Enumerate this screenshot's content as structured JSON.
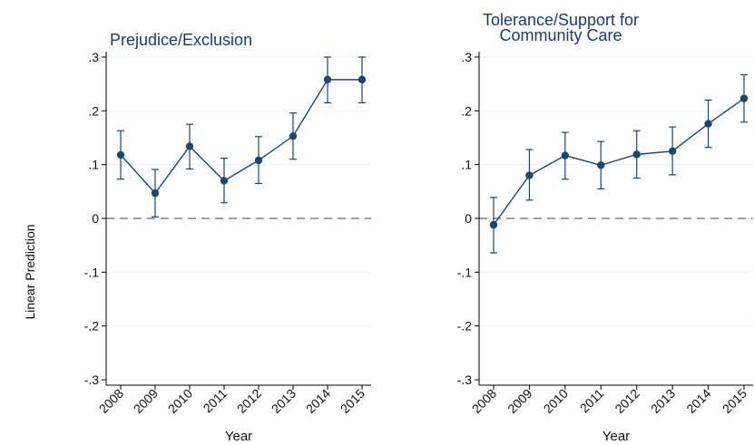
{
  "figure": {
    "shared_ylabel": "Linear Prediction"
  },
  "chart_data": [
    {
      "type": "line",
      "title": "Prejudice/Exclusion",
      "xlabel": "Year",
      "ylabel": "Linear Prediction",
      "x": [
        "2008",
        "2009",
        "2010",
        "2011",
        "2012",
        "2013",
        "2014",
        "2015"
      ],
      "series": [
        {
          "values": [
            0.118,
            0.047,
            0.134,
            0.07,
            0.108,
            0.153,
            0.258,
            0.258
          ],
          "ci_lower": [
            0.073,
            0.003,
            0.092,
            0.029,
            0.065,
            0.11,
            0.215,
            0.215
          ],
          "ci_upper": [
            0.163,
            0.091,
            0.175,
            0.112,
            0.152,
            0.196,
            0.3,
            0.3
          ]
        }
      ],
      "ylim": [
        -0.31,
        0.31
      ],
      "yticks": [
        ".3",
        ".2",
        ".1",
        "0",
        "-.1",
        "-.2",
        "-.3"
      ],
      "reference_line": 0,
      "grid": true,
      "colors": {
        "series": "#1a476f",
        "reference": "#808080",
        "grid": "#eaf2f3"
      }
    },
    {
      "type": "line",
      "title": "Tolerance/Support for Community Care",
      "title_lines": [
        "Tolerance/Support for",
        "Community Care"
      ],
      "xlabel": "Year",
      "ylabel": "Linear Prediction",
      "x": [
        "2008",
        "2009",
        "2010",
        "2011",
        "2012",
        "2013",
        "2014",
        "2015"
      ],
      "series": [
        {
          "values": [
            -0.012,
            0.08,
            0.117,
            0.099,
            0.119,
            0.125,
            0.176,
            0.223
          ],
          "ci_lower": [
            -0.064,
            0.034,
            0.073,
            0.055,
            0.075,
            0.081,
            0.132,
            0.179
          ],
          "ci_upper": [
            0.039,
            0.128,
            0.16,
            0.143,
            0.163,
            0.17,
            0.22,
            0.267
          ]
        }
      ],
      "ylim": [
        -0.31,
        0.31
      ],
      "yticks": [
        ".3",
        ".2",
        ".1",
        "0",
        "-.1",
        "-.2",
        "-.3"
      ],
      "reference_line": 0,
      "grid": true,
      "colors": {
        "series": "#1a476f",
        "reference": "#808080",
        "grid": "#eaf2f3"
      }
    }
  ]
}
